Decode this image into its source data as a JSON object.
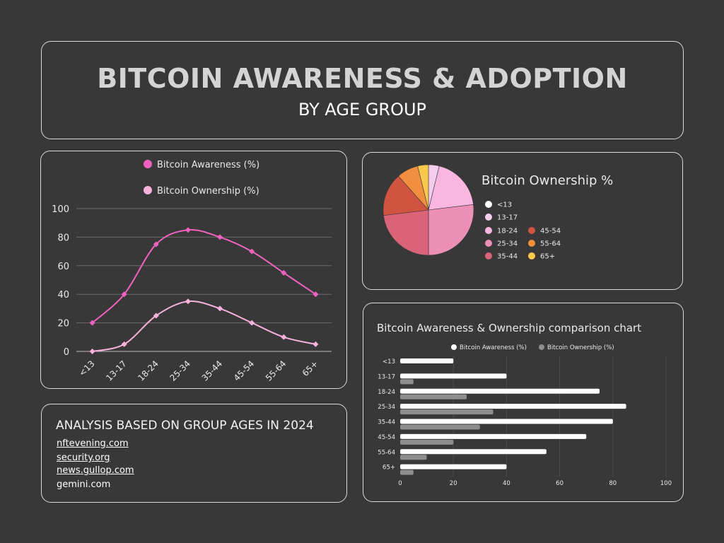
{
  "header": {
    "title": "BITCOIN AWARENESS & ADOPTION",
    "subtitle": "BY AGE GROUP"
  },
  "colors": {
    "awareness_line": "#f062c0",
    "ownership_line": "#f7b1dc",
    "bar_awareness": "#ffffff",
    "bar_ownership": "#8e8e8e"
  },
  "sources": {
    "heading": "ANALYSIS BASED ON GROUP AGES IN 2024",
    "links": [
      "nftevening.com",
      "security.org",
      "news.gullop.com",
      "gemini.com"
    ]
  },
  "chart_data": [
    {
      "type": "line",
      "categories": [
        "<13",
        "13-17",
        "18-24",
        "25-34",
        "35-44",
        "45-54",
        "55-64",
        "65+"
      ],
      "series": [
        {
          "name": "Bitcoin Awareness (%)",
          "values": [
            20,
            40,
            75,
            85,
            80,
            70,
            55,
            40
          ]
        },
        {
          "name": "Bitcoin Ownership (%)",
          "values": [
            0,
            5,
            25,
            35,
            30,
            20,
            10,
            5
          ]
        }
      ],
      "y_ticks": [
        "0",
        "20",
        "40",
        "60",
        "80",
        "100"
      ],
      "ylim": [
        0,
        100
      ],
      "grid": true,
      "legend": "top"
    },
    {
      "type": "pie",
      "title": "Bitcoin Ownership %",
      "labels": [
        "<13",
        "13-17",
        "18-24",
        "25-34",
        "35-44",
        "45-54",
        "55-64",
        "65+"
      ],
      "values": [
        0,
        5,
        25,
        35,
        30,
        20,
        10,
        5
      ],
      "colors": [
        "#d8d8d8",
        "#f2cdec",
        "#f8b6e1",
        "#ec90b7",
        "#da6377",
        "#d05440",
        "#f28f3e",
        "#f9c94d"
      ],
      "legend": "right"
    },
    {
      "type": "bar",
      "orientation": "horizontal",
      "title": "Bitcoin Awareness & Ownership comparison chart",
      "categories": [
        "<13",
        "13-17",
        "18-24",
        "25-34",
        "35-44",
        "45-54",
        "55-64",
        "65+"
      ],
      "series": [
        {
          "name": "Bitcoin Awareness (%)",
          "values": [
            20,
            40,
            75,
            85,
            80,
            70,
            55,
            40
          ]
        },
        {
          "name": "Bitcoin Ownership (%)",
          "values": [
            0,
            5,
            25,
            35,
            30,
            20,
            10,
            5
          ]
        }
      ],
      "x_ticks": [
        "0",
        "20",
        "40",
        "60",
        "80",
        "100"
      ],
      "xlim": [
        0,
        100
      ],
      "grid": true,
      "legend": "top"
    }
  ]
}
